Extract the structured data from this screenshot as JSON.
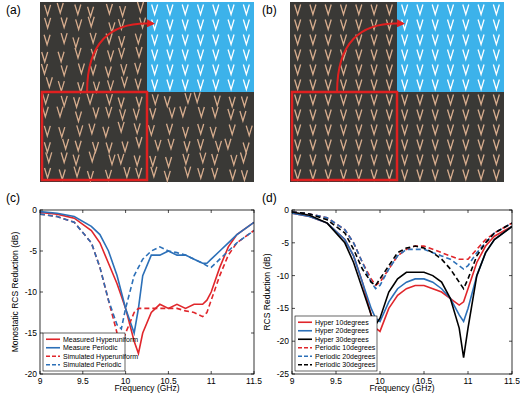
{
  "figure": {
    "panel_labels": [
      "(a)",
      "(b)",
      "(c)",
      "(d)"
    ]
  },
  "chart_data": [
    {
      "type": "line",
      "xlabel": "Frequency (GHz)",
      "ylabel": "Monostatic RCS Reduction (dB)",
      "x": [
        9,
        9.2,
        9.4,
        9.6,
        9.7,
        9.8,
        9.9,
        9.95,
        10,
        10.1,
        10.15,
        10.2,
        10.3,
        10.4,
        10.5,
        10.6,
        10.7,
        10.8,
        10.9,
        10.95,
        11,
        11.1,
        11.2,
        11.3,
        11.5
      ],
      "xlim": [
        9,
        11.5
      ],
      "xticks": [
        9,
        9.5,
        10,
        10.5,
        11,
        11.5
      ],
      "ylim": [
        -20,
        0
      ],
      "yticks": [
        -20,
        -15,
        -10,
        -5,
        0
      ],
      "grid": false,
      "legend": "lower left",
      "series": [
        {
          "name": "Measured Hyperuniform",
          "color": "#e0262b",
          "line_style": "solid",
          "values": [
            -0.3,
            -0.5,
            -1,
            -2.5,
            -4,
            -6.5,
            -9,
            -10.5,
            -12,
            -16,
            -17.5,
            -15,
            -12.5,
            -11.5,
            -12,
            -11.5,
            -12,
            -11.5,
            -11.5,
            -11,
            -10,
            -7,
            -4.5,
            -3,
            -1.5
          ]
        },
        {
          "name": "Measure Periodic",
          "color": "#2c70b8",
          "line_style": "solid",
          "values": [
            -0.2,
            -0.4,
            -0.8,
            -2,
            -3,
            -5,
            -8,
            -10,
            -12,
            -15,
            -12,
            -8,
            -5.5,
            -5.5,
            -5,
            -5.5,
            -5.5,
            -6,
            -6.5,
            -6.5,
            -6,
            -5,
            -4,
            -3,
            -1.5
          ]
        },
        {
          "name": "Simulated Hyperuniform",
          "color": "#e0262b",
          "line_style": "dashed",
          "values": [
            -0.5,
            -0.8,
            -1.5,
            -4,
            -7,
            -11,
            -15,
            -16.5,
            -15,
            -12.5,
            -12,
            -12,
            -12,
            -12,
            -12,
            -12,
            -12.3,
            -12.5,
            -13,
            -12.5,
            -11,
            -8,
            -5.5,
            -4,
            -2.5
          ]
        },
        {
          "name": "Simulated Periodic",
          "color": "#2c70b8",
          "line_style": "dashed",
          "values": [
            -0.5,
            -0.8,
            -1.5,
            -4,
            -7,
            -11,
            -14,
            -14.5,
            -12,
            -8,
            -7,
            -6,
            -5,
            -4.5,
            -5,
            -5.2,
            -5.5,
            -6,
            -6.5,
            -6.8,
            -7,
            -6,
            -5,
            -4,
            -2.5
          ]
        }
      ]
    },
    {
      "type": "line",
      "xlabel": "Frequency (GHz)",
      "ylabel": "RCS Reduction (dB)",
      "x": [
        9,
        9.2,
        9.4,
        9.6,
        9.7,
        9.8,
        9.9,
        9.95,
        10,
        10.1,
        10.15,
        10.2,
        10.3,
        10.4,
        10.5,
        10.6,
        10.7,
        10.8,
        10.9,
        10.95,
        11,
        11.1,
        11.2,
        11.3,
        11.5
      ],
      "xlim": [
        9,
        11.5
      ],
      "xticks": [
        9,
        9.5,
        10,
        10.5,
        11,
        11.5
      ],
      "ylim": [
        -25,
        0
      ],
      "yticks": [
        -25,
        -20,
        -15,
        -10,
        -5,
        0
      ],
      "grid": false,
      "legend": "lower left",
      "series": [
        {
          "name": "Hyper 10degrees",
          "color": "#e0262b",
          "line_style": "solid",
          "values": [
            -0.5,
            -1,
            -2,
            -4.5,
            -7,
            -11,
            -16,
            -18,
            -18.5,
            -15,
            -14,
            -13,
            -12,
            -11.5,
            -11.5,
            -12,
            -12.5,
            -13.5,
            -14.5,
            -14,
            -12,
            -8,
            -5.5,
            -4,
            -2.5
          ]
        },
        {
          "name": "Hyper 20degrees",
          "color": "#2c70b8",
          "line_style": "solid",
          "values": [
            -0.5,
            -1,
            -2,
            -4.5,
            -7,
            -11,
            -15,
            -16.5,
            -17,
            -14,
            -13,
            -12,
            -11,
            -10.5,
            -10.5,
            -11,
            -12,
            -13.5,
            -16,
            -17,
            -15,
            -10,
            -6.5,
            -4.5,
            -2.5
          ]
        },
        {
          "name": "Hyper 30degrees",
          "color": "#000000",
          "line_style": "solid",
          "values": [
            -0.3,
            -0.8,
            -2,
            -5,
            -8,
            -12,
            -16,
            -17.5,
            -16.5,
            -12.5,
            -11.5,
            -10.5,
            -9.5,
            -9.5,
            -9.5,
            -10,
            -11,
            -13.5,
            -18,
            -22.5,
            -18,
            -10,
            -6.5,
            -4.5,
            -2.5
          ]
        },
        {
          "name": "Periodic 10degrees",
          "color": "#e0262b",
          "line_style": "dashed",
          "values": [
            -0.3,
            -0.6,
            -1.2,
            -3,
            -5,
            -8,
            -10.5,
            -11.5,
            -11,
            -9,
            -8,
            -7,
            -6,
            -5.5,
            -5.5,
            -6,
            -6.5,
            -7,
            -7.5,
            -7.5,
            -7.5,
            -6,
            -4.5,
            -3.5,
            -2
          ]
        },
        {
          "name": "Periodic 20degrees",
          "color": "#2c70b8",
          "line_style": "dashed",
          "values": [
            -0.3,
            -0.6,
            -1.2,
            -3,
            -5,
            -8,
            -11,
            -12,
            -11.5,
            -9,
            -8,
            -7,
            -6,
            -6,
            -6,
            -6.5,
            -7,
            -7.5,
            -8.5,
            -9,
            -8.5,
            -6.5,
            -5,
            -3.5,
            -2
          ]
        },
        {
          "name": "Periodic 30degrees",
          "color": "#000000",
          "line_style": "dashed",
          "values": [
            -0.3,
            -0.6,
            -1.5,
            -3.5,
            -6,
            -9,
            -11,
            -11.5,
            -10.5,
            -8.5,
            -7.5,
            -6.5,
            -5.8,
            -5.5,
            -5.8,
            -6.5,
            -7.5,
            -9,
            -11,
            -12,
            -10.5,
            -7,
            -5,
            -3.5,
            -2
          ]
        }
      ]
    }
  ]
}
